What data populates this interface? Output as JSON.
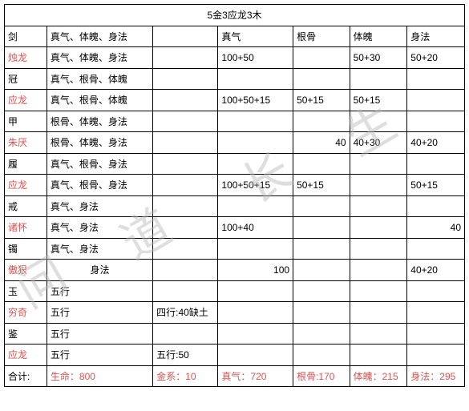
{
  "title": "5金3应龙3木",
  "watermark": {
    "a": "问",
    "b": "道",
    "c": "长",
    "d": "生"
  },
  "headers": {
    "c3": "真气",
    "c4": "根骨",
    "c5": "体魄",
    "c6": "身法"
  },
  "rows": [
    {
      "c0": "剑",
      "name_color": "black",
      "c1": "真气、体魄、身法",
      "c1_align": "left",
      "c2": "",
      "c3": "",
      "c3_align": "left",
      "c4": "",
      "c4_align": "left",
      "c5": "",
      "c6": "",
      "c6_align": "left"
    },
    {
      "c0": "烛龙",
      "name_color": "red",
      "c1": "真气、体魄、身法",
      "c1_align": "left",
      "c2": "",
      "c3": "100+50",
      "c3_align": "left",
      "c4": "",
      "c4_align": "left",
      "c5": "50+30",
      "c6": "50+20",
      "c6_align": "left"
    },
    {
      "c0": "冠",
      "name_color": "black",
      "c1": "真气、根骨、体魄",
      "c1_align": "left",
      "c2": "",
      "c3": "",
      "c3_align": "left",
      "c4": "",
      "c4_align": "left",
      "c5": "",
      "c6": "",
      "c6_align": "left"
    },
    {
      "c0": "应龙",
      "name_color": "red",
      "c1": "真气、根骨、体魄",
      "c1_align": "left",
      "c2": "",
      "c3": "100+50+15",
      "c3_align": "left",
      "c4": "50+15",
      "c4_align": "left",
      "c5": "50+15",
      "c6": "",
      "c6_align": "left"
    },
    {
      "c0": "甲",
      "name_color": "black",
      "c1": "根骨、体魄、身法",
      "c1_align": "left",
      "c2": "",
      "c3": "",
      "c3_align": "left",
      "c4": "",
      "c4_align": "left",
      "c5": "",
      "c6": "",
      "c6_align": "left"
    },
    {
      "c0": "朱厌",
      "name_color": "red",
      "c1": "根骨、体魄、身法",
      "c1_align": "left",
      "c2": "",
      "c3": "",
      "c3_align": "left",
      "c4": "40",
      "c4_align": "right",
      "c5": "40+30",
      "c6": "40+20",
      "c6_align": "left"
    },
    {
      "c0": "履",
      "name_color": "black",
      "c1": "真气、根骨、身法",
      "c1_align": "left",
      "c2": "",
      "c3": "",
      "c3_align": "left",
      "c4": "",
      "c4_align": "left",
      "c5": "",
      "c6": "",
      "c6_align": "left"
    },
    {
      "c0": "应龙",
      "name_color": "red",
      "c1": "真气、根骨、身法",
      "c1_align": "left",
      "c2": "",
      "c3": "100+50+15",
      "c3_align": "left",
      "c4": "50+15",
      "c4_align": "left",
      "c5": "",
      "c6": "50+15",
      "c6_align": "left"
    },
    {
      "c0": "戒",
      "name_color": "black",
      "c1": "真气、身法",
      "c1_align": "left",
      "c2": "",
      "c3": "",
      "c3_align": "left",
      "c4": "",
      "c4_align": "left",
      "c5": "",
      "c6": "",
      "c6_align": "left"
    },
    {
      "c0": "诸怀",
      "name_color": "red",
      "c1": "真气、身法",
      "c1_align": "left",
      "c2": "",
      "c3": "100+40",
      "c3_align": "left",
      "c4": "",
      "c4_align": "left",
      "c5": "",
      "c6": "40",
      "c6_align": "right"
    },
    {
      "c0": "镯",
      "name_color": "black",
      "c1": "真气、身法",
      "c1_align": "left",
      "c2": "",
      "c3": "",
      "c3_align": "left",
      "c4": "",
      "c4_align": "left",
      "c5": "",
      "c6": "",
      "c6_align": "left"
    },
    {
      "c0": "傲狠",
      "name_color": "red",
      "c1": "身法",
      "c1_align": "center",
      "c2": "",
      "c3": "100",
      "c3_align": "right",
      "c4": "",
      "c4_align": "left",
      "c5": "",
      "c6": "40+20",
      "c6_align": "left"
    },
    {
      "c0": "玉",
      "name_color": "black",
      "c1": "五行",
      "c1_align": "left",
      "c2": "",
      "c3": "",
      "c3_align": "left",
      "c4": "",
      "c4_align": "left",
      "c5": "",
      "c6": "",
      "c6_align": "left"
    },
    {
      "c0": "穷奇",
      "name_color": "red",
      "c1": "五行",
      "c1_align": "left",
      "c2": "四行:40缺土",
      "c3": "",
      "c3_align": "left",
      "c4": "",
      "c4_align": "left",
      "c5": "",
      "c6": "",
      "c6_align": "left"
    },
    {
      "c0": "鉴",
      "name_color": "black",
      "c1": "五行",
      "c1_align": "left",
      "c2": "",
      "c3": "",
      "c3_align": "left",
      "c4": "",
      "c4_align": "left",
      "c5": "",
      "c6": "",
      "c6_align": "left"
    },
    {
      "c0": "应龙",
      "name_color": "red",
      "c1": "五行",
      "c1_align": "left",
      "c2": "五行:50",
      "c3": "",
      "c3_align": "left",
      "c4": "",
      "c4_align": "left",
      "c5": "",
      "c6": "",
      "c6_align": "left"
    }
  ],
  "footer": {
    "label": "合计:",
    "c1": "生命：800",
    "c2": "金系：10",
    "c3": "真气：720",
    "c4": "根骨:170",
    "c5": "体魄：215",
    "c6": "身法：295"
  },
  "colors": {
    "red": "#d9534f",
    "border": "#000000",
    "bg": "#ffffff"
  }
}
